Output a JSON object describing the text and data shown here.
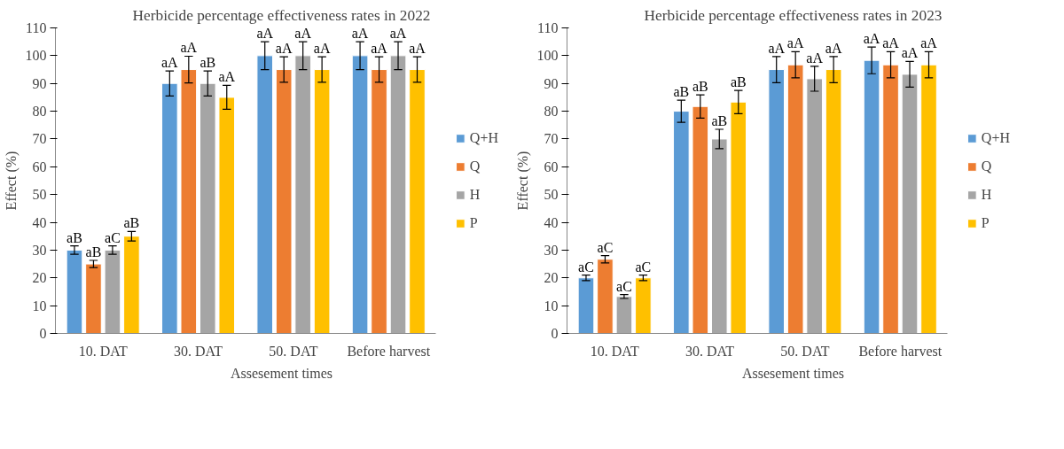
{
  "chart_data": [
    {
      "type": "bar",
      "title": "Herbicide percentage effectiveness rates in 2022",
      "xlabel": "Assesement times",
      "ylabel": "Effect (%)",
      "categories": [
        "10. DAT",
        "30. DAT",
        "50. DAT",
        "Before harvest"
      ],
      "ylim": [
        0,
        110
      ],
      "yticks": [
        0,
        10,
        20,
        30,
        40,
        50,
        60,
        70,
        80,
        90,
        100,
        110
      ],
      "grid": false,
      "legend": "right",
      "series": [
        {
          "name": "Q+H",
          "color": "#5b9bd5",
          "values": [
            30,
            90,
            100,
            100
          ],
          "errors": [
            1.5,
            4.5,
            5,
            5
          ],
          "value_labels": [
            "aB",
            "aA",
            "aA",
            "aA"
          ]
        },
        {
          "name": "Q",
          "color": "#ed7d31",
          "values": [
            25,
            95,
            95,
            95
          ],
          "errors": [
            1.3,
            4.8,
            4.6,
            4.6
          ],
          "value_labels": [
            "aB",
            "aA",
            "aA",
            "aA"
          ]
        },
        {
          "name": "H",
          "color": "#a5a5a5",
          "values": [
            30,
            90,
            100,
            100
          ],
          "errors": [
            1.5,
            4.5,
            5,
            5
          ],
          "value_labels": [
            "aC",
            "aB",
            "aA",
            "aA"
          ]
        },
        {
          "name": "P",
          "color": "#ffc000",
          "values": [
            35,
            85,
            95,
            95
          ],
          "errors": [
            1.7,
            4.3,
            4.6,
            4.6
          ],
          "value_labels": [
            "aB",
            "aA",
            "aA",
            "aA"
          ]
        }
      ]
    },
    {
      "type": "bar",
      "title": "Herbicide percentage effectiveness rates in 2023",
      "xlabel": "Assesement times",
      "ylabel": "Effect (%)",
      "categories": [
        "10. DAT",
        "30. DAT",
        "50. DAT",
        "Before harvest"
      ],
      "ylim": [
        0,
        110
      ],
      "yticks": [
        0,
        10,
        20,
        30,
        40,
        50,
        60,
        70,
        80,
        90,
        100,
        110
      ],
      "grid": false,
      "legend": "right",
      "series": [
        {
          "name": "Q+H",
          "color": "#5b9bd5",
          "values": [
            20,
            80,
            95,
            98.3
          ],
          "errors": [
            1,
            4,
            4.7,
            4.8
          ],
          "value_labels": [
            "aC",
            "aB",
            "aA",
            "aA"
          ]
        },
        {
          "name": "Q",
          "color": "#ed7d31",
          "values": [
            26.7,
            81.7,
            96.7,
            96.7
          ],
          "errors": [
            1.3,
            4.2,
            4.7,
            4.7
          ],
          "value_labels": [
            "aC",
            "aB",
            "aA",
            "aA"
          ]
        },
        {
          "name": "H",
          "color": "#a5a5a5",
          "values": [
            13.3,
            70,
            91.7,
            93.3
          ],
          "errors": [
            0.7,
            3.5,
            4.5,
            4.6
          ],
          "value_labels": [
            "aC",
            "aB",
            "aA",
            "aA"
          ]
        },
        {
          "name": "P",
          "color": "#ffc000",
          "values": [
            20,
            83.3,
            95,
            96.7
          ],
          "errors": [
            1,
            4.2,
            4.7,
            4.7
          ],
          "value_labels": [
            "aC",
            "aB",
            "aA",
            "aA"
          ]
        }
      ]
    }
  ]
}
